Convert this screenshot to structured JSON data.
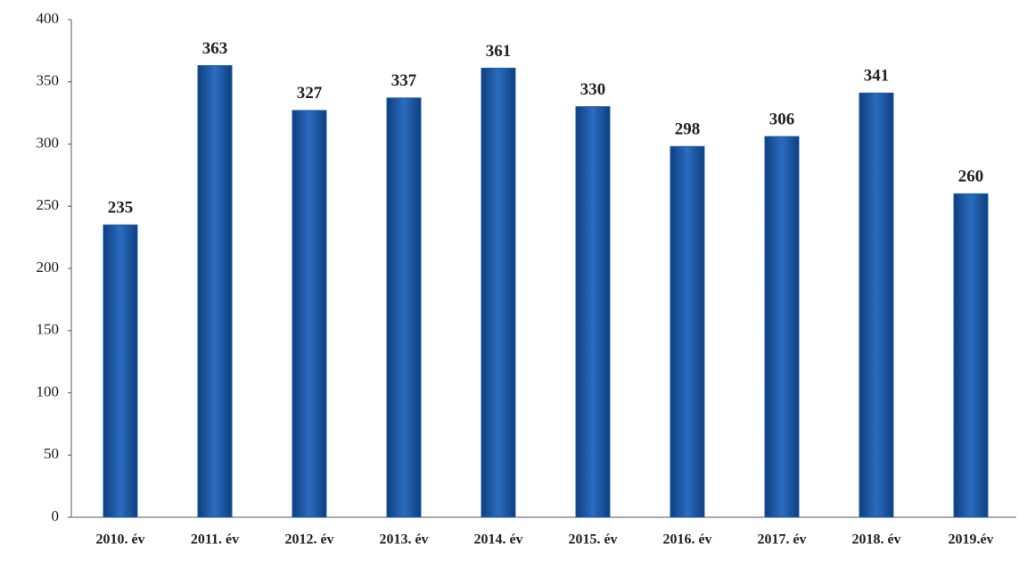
{
  "chart_data": {
    "type": "bar",
    "categories": [
      "2010. év",
      "2011. év",
      "2012. év",
      "2013. év",
      "2014. év",
      "2015. év",
      "2016. év",
      "2017. év",
      "2018. év",
      "2019.év"
    ],
    "values": [
      235,
      363,
      327,
      337,
      361,
      330,
      298,
      306,
      341,
      260
    ],
    "color": "#1d5aa6",
    "ylim": [
      0,
      400
    ],
    "yticks": [
      0,
      50,
      100,
      150,
      200,
      250,
      300,
      350,
      400
    ],
    "grid": false
  }
}
